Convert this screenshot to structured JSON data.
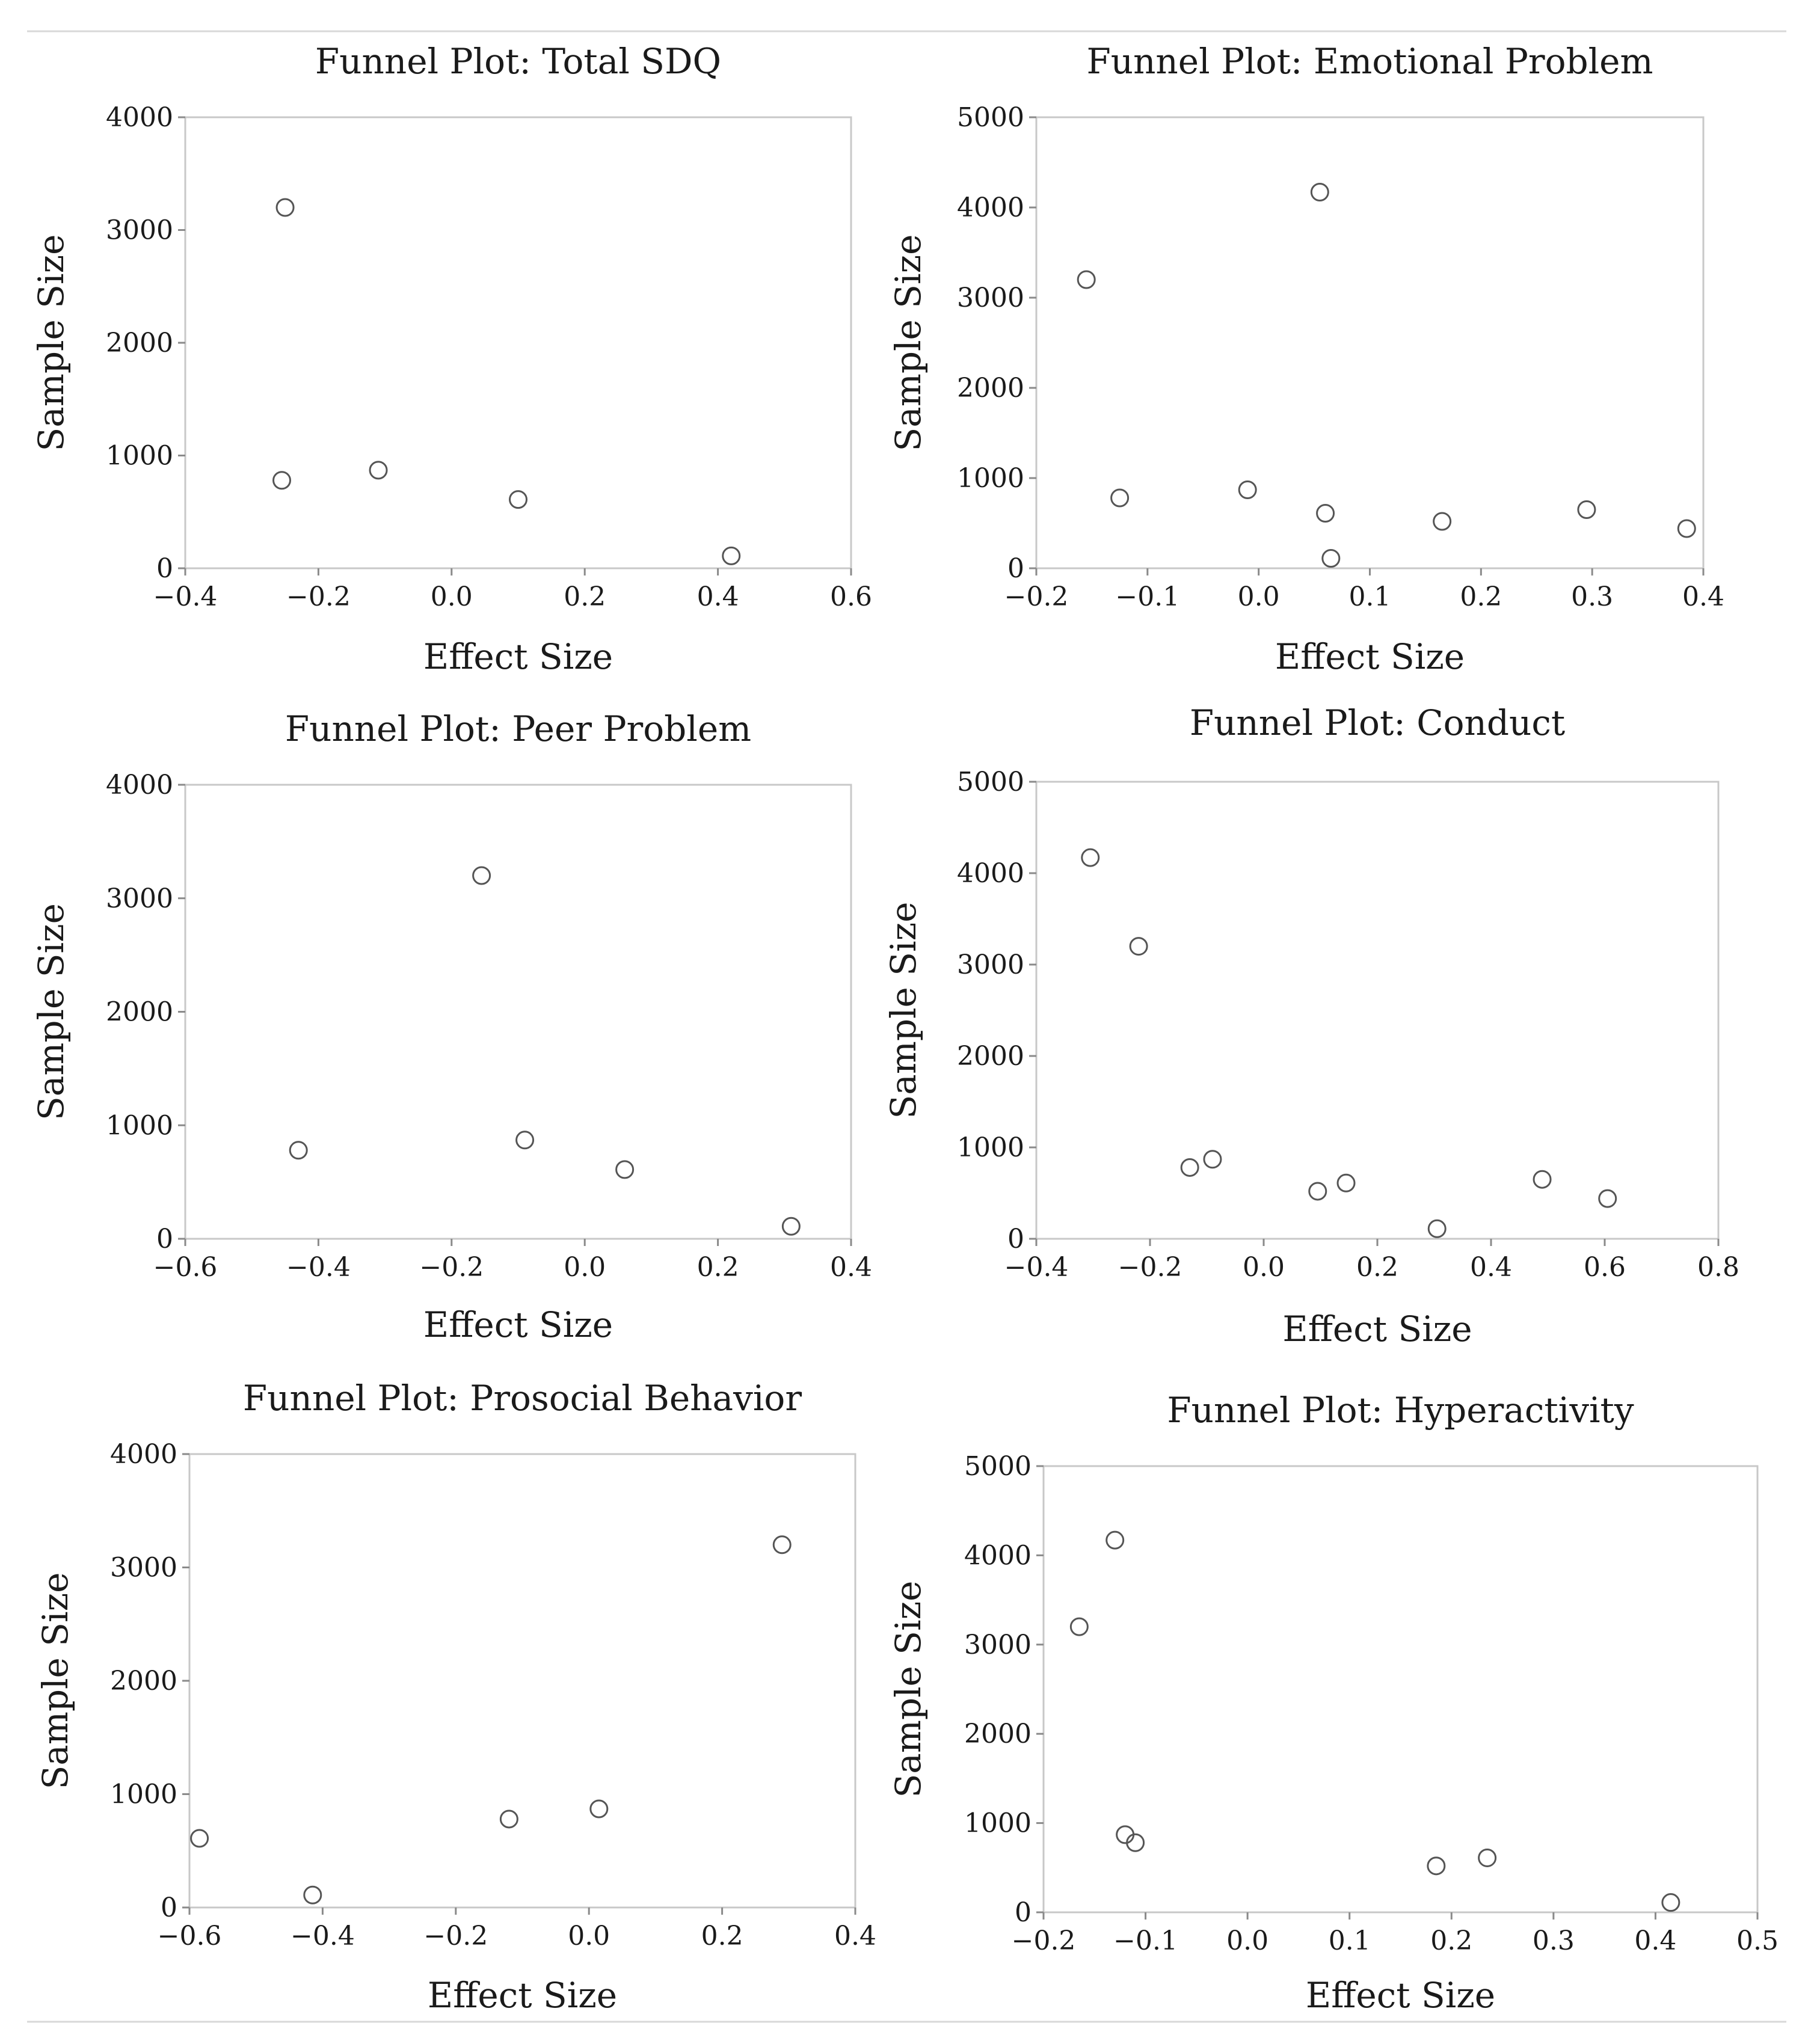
{
  "chart_data": [
    {
      "type": "scatter",
      "title": "Funnel Plot: Total SDQ",
      "xlabel": "Effect Size",
      "ylabel": "Sample Size",
      "xlim": [
        -0.4,
        0.6
      ],
      "ylim": [
        0,
        4000
      ],
      "xticks": [
        -0.4,
        -0.2,
        0.0,
        0.2,
        0.4,
        0.6
      ],
      "xtick_labels": [
        "−0.4",
        "−0.2",
        "0.0",
        "0.2",
        "0.4",
        "0.6"
      ],
      "yticks": [
        0,
        1000,
        2000,
        3000,
        4000
      ],
      "ytick_labels": [
        "0",
        "1000",
        "2000",
        "3000",
        "4000"
      ],
      "points": [
        {
          "x": -0.25,
          "y": 3200
        },
        {
          "x": -0.255,
          "y": 780
        },
        {
          "x": -0.11,
          "y": 870
        },
        {
          "x": 0.1,
          "y": 610
        },
        {
          "x": 0.42,
          "y": 110
        }
      ]
    },
    {
      "type": "scatter",
      "title": "Funnel Plot: Emotional Problem",
      "xlabel": "Effect Size",
      "ylabel": "Sample Size",
      "xlim": [
        -0.2,
        0.4
      ],
      "ylim": [
        0,
        5000
      ],
      "xticks": [
        -0.2,
        -0.1,
        0.0,
        0.1,
        0.2,
        0.3,
        0.4
      ],
      "xtick_labels": [
        "−0.2",
        "−0.1",
        "0.0",
        "0.1",
        "0.2",
        "0.3",
        "0.4"
      ],
      "yticks": [
        0,
        1000,
        2000,
        3000,
        4000,
        5000
      ],
      "ytick_labels": [
        "0",
        "1000",
        "2000",
        "3000",
        "4000",
        "5000"
      ],
      "points": [
        {
          "x": -0.155,
          "y": 3200
        },
        {
          "x": -0.125,
          "y": 780
        },
        {
          "x": -0.01,
          "y": 870
        },
        {
          "x": 0.055,
          "y": 4170
        },
        {
          "x": 0.06,
          "y": 610
        },
        {
          "x": 0.065,
          "y": 110
        },
        {
          "x": 0.165,
          "y": 520
        },
        {
          "x": 0.295,
          "y": 650
        },
        {
          "x": 0.385,
          "y": 440
        }
      ]
    },
    {
      "type": "scatter",
      "title": "Funnel Plot: Peer Problem",
      "xlabel": "Effect Size",
      "ylabel": "Sample Size",
      "xlim": [
        -0.6,
        0.4
      ],
      "ylim": [
        0,
        4000
      ],
      "xticks": [
        -0.6,
        -0.4,
        -0.2,
        0.0,
        0.2,
        0.4
      ],
      "xtick_labels": [
        "−0.6",
        "−0.4",
        "−0.2",
        "0.0",
        "0.2",
        "0.4"
      ],
      "yticks": [
        0,
        1000,
        2000,
        3000,
        4000
      ],
      "ytick_labels": [
        "0",
        "1000",
        "2000",
        "3000",
        "4000"
      ],
      "points": [
        {
          "x": -0.43,
          "y": 780
        },
        {
          "x": -0.155,
          "y": 3200
        },
        {
          "x": -0.09,
          "y": 870
        },
        {
          "x": 0.06,
          "y": 610
        },
        {
          "x": 0.31,
          "y": 110
        }
      ]
    },
    {
      "type": "scatter",
      "title": "Funnel Plot: Conduct",
      "xlabel": "Effect Size",
      "ylabel": "Sample Size",
      "xlim": [
        -0.4,
        0.8
      ],
      "ylim": [
        0,
        5000
      ],
      "xticks": [
        -0.4,
        -0.2,
        0.0,
        0.2,
        0.4,
        0.6,
        0.8
      ],
      "xtick_labels": [
        "−0.4",
        "−0.2",
        "0.0",
        "0.2",
        "0.4",
        "0.6",
        "0.8"
      ],
      "yticks": [
        0,
        1000,
        2000,
        3000,
        4000,
        5000
      ],
      "ytick_labels": [
        "0",
        "1000",
        "2000",
        "3000",
        "4000",
        "5000"
      ],
      "points": [
        {
          "x": -0.305,
          "y": 4170
        },
        {
          "x": -0.22,
          "y": 3200
        },
        {
          "x": -0.13,
          "y": 780
        },
        {
          "x": -0.09,
          "y": 870
        },
        {
          "x": 0.095,
          "y": 520
        },
        {
          "x": 0.145,
          "y": 610
        },
        {
          "x": 0.305,
          "y": 110
        },
        {
          "x": 0.49,
          "y": 650
        },
        {
          "x": 0.605,
          "y": 440
        }
      ]
    },
    {
      "type": "scatter",
      "title": "Funnel Plot: Prosocial Behavior",
      "xlabel": "Effect Size",
      "ylabel": "Sample Size",
      "xlim": [
        -0.6,
        0.4
      ],
      "ylim": [
        0,
        4000
      ],
      "xticks": [
        -0.6,
        -0.4,
        -0.2,
        0.0,
        0.2,
        0.4
      ],
      "xtick_labels": [
        "−0.6",
        "−0.4",
        "−0.2",
        "0.0",
        "0.2",
        "0.4"
      ],
      "yticks": [
        0,
        1000,
        2000,
        3000,
        4000
      ],
      "ytick_labels": [
        "0",
        "1000",
        "2000",
        "3000",
        "4000"
      ],
      "points": [
        {
          "x": -0.585,
          "y": 610
        },
        {
          "x": -0.415,
          "y": 110
        },
        {
          "x": -0.12,
          "y": 780
        },
        {
          "x": 0.015,
          "y": 870
        },
        {
          "x": 0.29,
          "y": 3200
        }
      ]
    },
    {
      "type": "scatter",
      "title": "Funnel Plot: Hyperactivity",
      "xlabel": "Effect Size",
      "ylabel": "Sample Size",
      "xlim": [
        -0.2,
        0.5
      ],
      "ylim": [
        0,
        5000
      ],
      "xticks": [
        -0.2,
        -0.1,
        0.0,
        0.1,
        0.2,
        0.3,
        0.4,
        0.5
      ],
      "xtick_labels": [
        "−0.2",
        "−0.1",
        "0.0",
        "0.1",
        "0.2",
        "0.3",
        "0.4",
        "0.5"
      ],
      "yticks": [
        0,
        1000,
        2000,
        3000,
        4000,
        5000
      ],
      "ytick_labels": [
        "0",
        "1000",
        "2000",
        "3000",
        "4000",
        "5000"
      ],
      "points": [
        {
          "x": -0.165,
          "y": 3200
        },
        {
          "x": -0.13,
          "y": 4170
        },
        {
          "x": -0.12,
          "y": 870
        },
        {
          "x": -0.11,
          "y": 780
        },
        {
          "x": 0.185,
          "y": 520
        },
        {
          "x": 0.235,
          "y": 610
        },
        {
          "x": 0.415,
          "y": 110
        }
      ]
    }
  ]
}
